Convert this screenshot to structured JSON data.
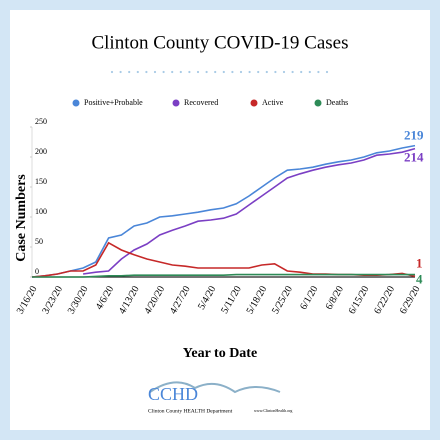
{
  "chart_data": {
    "type": "line",
    "title": "Clinton County COVID-19 Cases",
    "x_label": "Year to Date",
    "y_label": "Case Numbers",
    "categories": [
      "3/16/20",
      null,
      "3/23/20",
      null,
      "3/30/20",
      null,
      "4/6/20",
      null,
      "4/13/20",
      null,
      "4/20/20",
      null,
      "4/27/20",
      null,
      "5/4/20",
      null,
      "5/11/20",
      null,
      "5/18/20",
      null,
      "5/25/20",
      null,
      "6/1/20",
      null,
      "6/8/20",
      null,
      "6/15/20",
      null,
      "6/22/20",
      null,
      "6/29/20"
    ],
    "series": [
      {
        "name": "Positive+Probable",
        "color": "#4a86d8",
        "values": [
          0,
          2,
          5,
          10,
          15,
          25,
          65,
          70,
          85,
          90,
          100,
          102,
          105,
          108,
          112,
          115,
          122,
          135,
          150,
          165,
          178,
          180,
          183,
          188,
          192,
          195,
          200,
          207,
          210,
          215,
          219
        ]
      },
      {
        "name": "Recovered",
        "color": "#7b3fc4",
        "values": [
          null,
          null,
          null,
          null,
          5,
          8,
          10,
          30,
          45,
          55,
          70,
          78,
          85,
          93,
          95,
          98,
          105,
          120,
          135,
          150,
          165,
          172,
          178,
          183,
          187,
          190,
          195,
          203,
          205,
          208,
          214
        ]
      },
      {
        "name": "Active",
        "color": "#c62828",
        "values": [
          0,
          2,
          5,
          10,
          10,
          20,
          57,
          45,
          37,
          30,
          25,
          20,
          18,
          15,
          15,
          15,
          15,
          15,
          20,
          22,
          10,
          8,
          5,
          5,
          4,
          4,
          3,
          3,
          4,
          6,
          1
        ]
      },
      {
        "name": "Deaths",
        "color": "#2e8b57",
        "values": [
          0,
          0,
          0,
          0,
          0,
          1,
          2,
          2,
          3,
          3,
          3,
          3,
          3,
          3,
          3,
          3,
          4,
          4,
          4,
          4,
          4,
          4,
          4,
          4,
          4,
          4,
          4,
          4,
          4,
          4,
          4
        ]
      }
    ],
    "ylim": [
      0,
      250
    ],
    "yticks": [
      0,
      50,
      100,
      150,
      200,
      250
    ],
    "grid": false,
    "legend": "top"
  },
  "footer": {
    "logo": "CCHD",
    "org": "Clinton County HEALTH Department",
    "url": "www.ClintonHealth.org"
  }
}
